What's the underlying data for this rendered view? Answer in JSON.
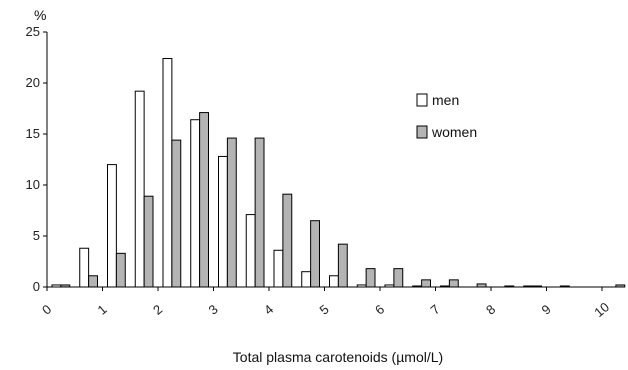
{
  "chart_data": {
    "type": "bar",
    "xlabel": "Total plasma carotenoids (µmol/L)",
    "ylabel": "%",
    "ylim": [
      0,
      25
    ],
    "yticks": [
      0,
      5,
      10,
      15,
      20,
      25
    ],
    "xticks": [
      "0",
      "1",
      "2",
      "3",
      "4",
      "5",
      "6",
      "7",
      "8",
      "9",
      "10"
    ],
    "bin_width": 0.5,
    "bin_starts": [
      0,
      0.5,
      1,
      1.5,
      2,
      2.5,
      3,
      3.5,
      4,
      4.5,
      5,
      5.5,
      6,
      6.5,
      7,
      7.5,
      8,
      8.5,
      9,
      9.5,
      10
    ],
    "series": [
      {
        "name": "men",
        "fill": "#ffffff",
        "values": [
          0.2,
          3.8,
          12.0,
          19.2,
          22.4,
          16.4,
          12.8,
          7.1,
          3.6,
          1.5,
          1.1,
          0.2,
          0.2,
          0.1,
          0.1,
          0.0,
          0.0,
          0.1,
          0.0,
          0.0,
          0.0
        ]
      },
      {
        "name": "women",
        "fill": "#b4b4b4",
        "values": [
          0.2,
          1.1,
          3.3,
          8.9,
          14.4,
          17.1,
          14.6,
          14.6,
          9.1,
          6.5,
          4.2,
          1.8,
          1.8,
          0.7,
          0.7,
          0.3,
          0.1,
          0.1,
          0.1,
          0.0,
          0.2
        ]
      }
    ],
    "legend": {
      "placement": "upper-right inside plot",
      "items": [
        {
          "label": "men",
          "color": "#ffffff"
        },
        {
          "label": "women",
          "color": "#b4b4b4"
        }
      ]
    },
    "grid": false
  }
}
